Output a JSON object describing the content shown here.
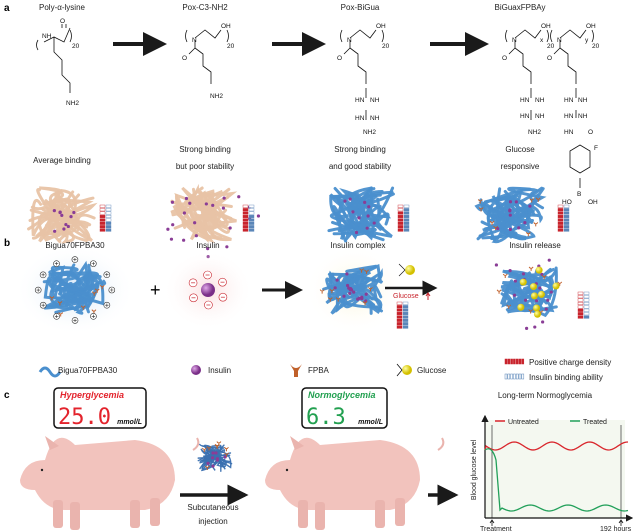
{
  "panel_a": {
    "label": "a",
    "polymers": [
      {
        "name": "Poly-α-lysine",
        "desc1": "Average binding",
        "desc2": "",
        "network_color": "#e8c3a5",
        "insulin_outside": false,
        "fpba": false
      },
      {
        "name": "Pox-C3-NH2",
        "desc1": "Strong binding",
        "desc2": "but poor stability",
        "network_color": "#e8c3a5",
        "insulin_outside": true,
        "fpba": false
      },
      {
        "name": "Pox-BiGua",
        "desc1": "Strong binding",
        "desc2": "and good stability",
        "network_color": "#4a8fce",
        "insulin_outside": false,
        "fpba": false
      },
      {
        "name": "BiGuaxFPBAy",
        "desc1": "Glucose",
        "desc2": "responsive",
        "network_color": "#4a8fce",
        "insulin_outside": false,
        "fpba": true
      }
    ],
    "chem_labels": {
      "nh": "NH",
      "nh2": "NH2",
      "oh": "OH",
      "o": "O",
      "n": "N",
      "f": "F",
      "b": "B",
      "ho": "HO",
      "hn": "HN",
      "n20": "20",
      "x": "x",
      "y": "y"
    }
  },
  "panel_b": {
    "label": "b",
    "steps": [
      "Bigua70FPBA30",
      "Insulin",
      "Insulin complex",
      "Insulin release"
    ],
    "plus": "+",
    "glucose_trigger": "Glucose",
    "legend": [
      {
        "label": "Bigua70FPBA30",
        "icon": "polymer-strand-icon"
      },
      {
        "label": "Insulin",
        "icon": "insulin-sphere-icon"
      },
      {
        "label": "FPBA",
        "icon": "fpba-icon"
      },
      {
        "label": "Glucose",
        "icon": "glucose-icon"
      },
      {
        "label": "Positive charge density",
        "icon": "charge-bar-icon",
        "color": "#c8232c"
      },
      {
        "label": "Insulin binding ability",
        "icon": "binding-bar-icon",
        "color": "#5a86b8"
      }
    ]
  },
  "panel_c": {
    "label": "c",
    "before": {
      "title": "Hyperglycemia",
      "value": "25.0",
      "unit": "mmol/L",
      "color": "#e3232c"
    },
    "after": {
      "title": "Normoglycemia",
      "value": "6.3",
      "unit": "mmol/L",
      "color": "#22a050"
    },
    "injection": [
      "Subcutaneous",
      "injection"
    ],
    "chart": {
      "title": "Long-term Normoglycemia",
      "ylabel": "Blood glucose level",
      "legend": [
        {
          "name": "Untreated",
          "color": "#d9262c"
        },
        {
          "name": "Treated",
          "color": "#22a05a"
        }
      ],
      "x_start_label": "Treatment",
      "x_end_label": "192 hours"
    }
  },
  "colors": {
    "arrow": "#1a1a1a",
    "insulin": "#8a3d96",
    "fpba": "#c0602a",
    "glucose": "#e6d81a"
  }
}
